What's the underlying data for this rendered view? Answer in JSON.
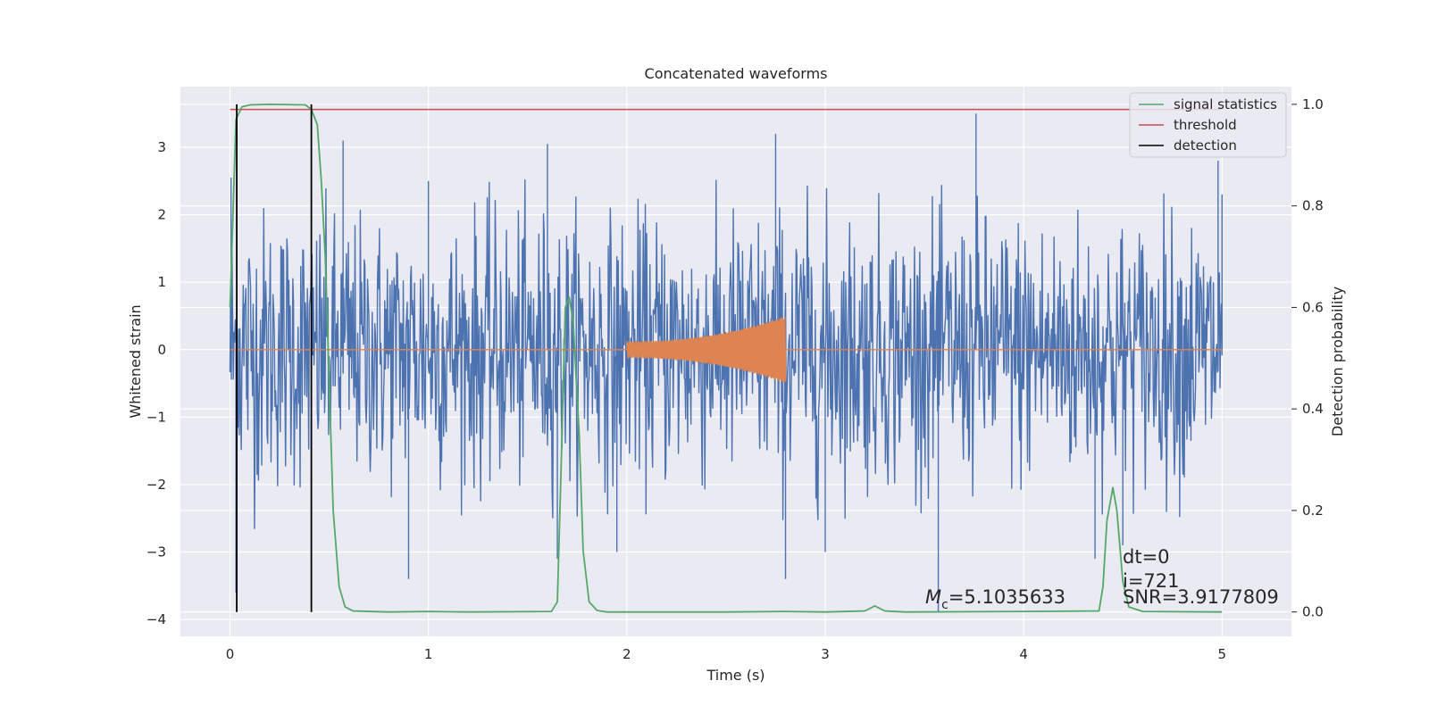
{
  "chart_data": {
    "type": "line",
    "title": "Concatenated waveforms",
    "xlabel": "Time (s)",
    "ylabel": "Whitened strain",
    "y2label": "Detection probability",
    "xlim": [
      -0.25,
      5.35
    ],
    "ylim": [
      -4.25,
      3.9
    ],
    "y2lim": [
      -0.048,
      1.035
    ],
    "x_ticks": [
      0,
      1,
      2,
      3,
      4,
      5
    ],
    "y_ticks": [
      -4,
      -3,
      -2,
      -1,
      0,
      1,
      2,
      3
    ],
    "y2_ticks": [
      0.0,
      0.2,
      0.4,
      0.6,
      0.8,
      1.0
    ],
    "grid": true,
    "legend_position": "top-right",
    "legend": [
      {
        "label": "signal statistics",
        "color": "#55a868"
      },
      {
        "label": "threshold",
        "color": "#c44e52"
      },
      {
        "label": "detection",
        "color": "#000000"
      }
    ],
    "series": [
      {
        "key": "whitened_strain",
        "color": "#4c72b0",
        "axis": "left",
        "x_range": [
          0,
          5
        ],
        "envelope": [
          [
            0.0,
            2.6
          ],
          [
            0.5,
            2.3
          ],
          [
            1.0,
            2.3
          ],
          [
            1.5,
            2.4
          ],
          [
            2.0,
            2.3
          ],
          [
            2.5,
            2.4
          ],
          [
            3.0,
            2.4
          ],
          [
            3.5,
            2.3
          ],
          [
            4.0,
            2.4
          ],
          [
            4.5,
            2.3
          ],
          [
            5.0,
            2.4
          ]
        ],
        "peaks": [
          [
            0.005,
            2.55
          ],
          [
            0.03,
            -3.6
          ],
          [
            0.41,
            -3.2
          ],
          [
            0.57,
            3.1
          ],
          [
            0.9,
            -3.4
          ],
          [
            1.0,
            2.5
          ],
          [
            1.6,
            3.05
          ],
          [
            1.65,
            -3.1
          ],
          [
            1.95,
            -3.0
          ],
          [
            2.75,
            3.2
          ],
          [
            2.8,
            -3.4
          ],
          [
            3.0,
            -3.0
          ],
          [
            3.57,
            -3.9
          ],
          [
            3.76,
            3.5
          ],
          [
            4.36,
            -3.1
          ],
          [
            4.5,
            -2.9
          ],
          [
            4.98,
            2.8
          ],
          [
            5.0,
            2.3
          ]
        ]
      },
      {
        "key": "injected_waveform",
        "color": "#dd8452",
        "axis": "left",
        "x_range": [
          0,
          5
        ],
        "chirp": {
          "start": 2.0,
          "end": 2.8,
          "amp_start": 0.12,
          "amp_end": 0.5
        }
      },
      {
        "key": "signal_statistics",
        "name": "signal statistics",
        "color": "#55a868",
        "axis": "right",
        "points": [
          [
            0.0,
            0.6
          ],
          [
            0.03,
            0.97
          ],
          [
            0.06,
            0.995
          ],
          [
            0.1,
            0.999
          ],
          [
            0.2,
            1.0
          ],
          [
            0.38,
            0.999
          ],
          [
            0.41,
            0.99
          ],
          [
            0.44,
            0.96
          ],
          [
            0.46,
            0.85
          ],
          [
            0.48,
            0.7
          ],
          [
            0.5,
            0.45
          ],
          [
            0.52,
            0.2
          ],
          [
            0.55,
            0.05
          ],
          [
            0.58,
            0.01
          ],
          [
            0.62,
            0.002
          ],
          [
            0.8,
            0.0
          ],
          [
            1.0,
            0.001
          ],
          [
            1.2,
            0.0
          ],
          [
            1.62,
            0.001
          ],
          [
            1.65,
            0.02
          ],
          [
            1.67,
            0.3
          ],
          [
            1.69,
            0.6
          ],
          [
            1.71,
            0.62
          ],
          [
            1.73,
            0.57
          ],
          [
            1.76,
            0.35
          ],
          [
            1.78,
            0.12
          ],
          [
            1.81,
            0.02
          ],
          [
            1.85,
            0.003
          ],
          [
            1.9,
            0.0
          ],
          [
            2.5,
            0.0
          ],
          [
            2.8,
            0.001
          ],
          [
            3.0,
            0.0
          ],
          [
            3.2,
            0.002
          ],
          [
            3.25,
            0.012
          ],
          [
            3.3,
            0.002
          ],
          [
            3.4,
            0.0
          ],
          [
            4.0,
            0.001
          ],
          [
            4.38,
            0.002
          ],
          [
            4.4,
            0.05
          ],
          [
            4.42,
            0.18
          ],
          [
            4.45,
            0.245
          ],
          [
            4.47,
            0.2
          ],
          [
            4.5,
            0.06
          ],
          [
            4.53,
            0.01
          ],
          [
            4.6,
            0.001
          ],
          [
            5.0,
            0.0
          ]
        ]
      },
      {
        "key": "threshold",
        "name": "threshold",
        "color": "#c44e52",
        "axis": "right",
        "x_range": [
          0,
          5
        ],
        "value": 0.99
      },
      {
        "key": "detection",
        "name": "detection",
        "color": "#000000",
        "axis": "right",
        "x": [
          0.034,
          0.41
        ],
        "y_range": [
          0.0,
          1.0
        ]
      }
    ],
    "annotations": {
      "mc_symbol": "M",
      "mc_sub": "c",
      "mc_value": "=5.1035633",
      "dt": "dt=0",
      "i": "i=721",
      "snr": "SNR=3.9177809"
    }
  }
}
